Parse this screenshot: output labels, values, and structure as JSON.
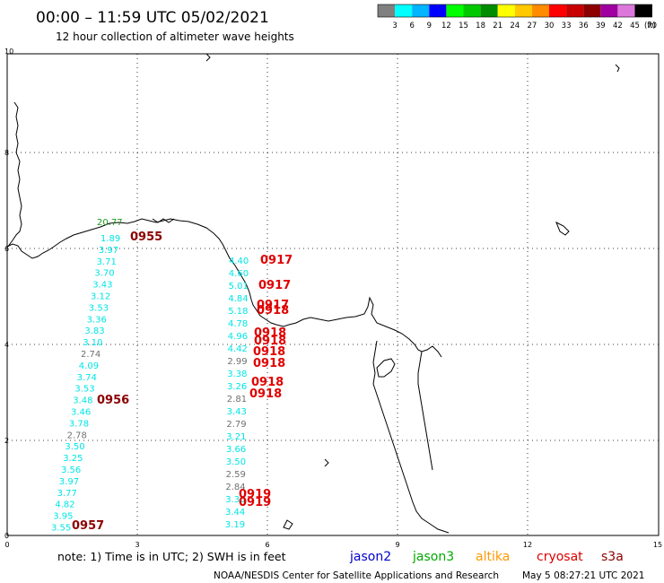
{
  "header": {
    "title": "00:00 – 11:59 UTC 05/02/2021",
    "subtitle": "12 hour collection of altimeter wave heights"
  },
  "legend": {
    "levels": [
      "3",
      "6",
      "9",
      "12",
      "15",
      "18",
      "21",
      "24",
      "27",
      "30",
      "33",
      "36",
      "39",
      "42",
      "45",
      "70"
    ],
    "unit": "(ft)",
    "colors": [
      "#808080",
      "#00ffff",
      "#00b4ff",
      "#0000ff",
      "#00ff00",
      "#00c800",
      "#008c00",
      "#ffff00",
      "#ffc800",
      "#ff8c00",
      "#ff0000",
      "#c80000",
      "#8c0000",
      "#a000a0",
      "#dc78dc",
      "#000000"
    ]
  },
  "axes": {
    "xticks": [
      "0",
      "3",
      "6",
      "9",
      "12",
      "15"
    ],
    "yticks": [
      "10",
      "8",
      "6",
      "4",
      "2",
      "0"
    ]
  },
  "colors": {
    "cyan": "#00e5e5",
    "gray": "#707070",
    "green": "#1a9a1a",
    "red": "#e00000",
    "darkred": "#8b0000"
  },
  "observations": {
    "track1": [
      {
        "v": "1.89",
        "c": "cyan"
      },
      {
        "v": "3.97",
        "c": "cyan"
      },
      {
        "v": "3.71",
        "c": "cyan"
      },
      {
        "v": "3.70",
        "c": "cyan"
      },
      {
        "v": "3.43",
        "c": "cyan"
      },
      {
        "v": "3.12",
        "c": "cyan"
      },
      {
        "v": "3.53",
        "c": "cyan"
      },
      {
        "v": "3.36",
        "c": "cyan"
      },
      {
        "v": "3.83",
        "c": "cyan"
      },
      {
        "v": "3.10",
        "c": "cyan"
      },
      {
        "v": "2.74",
        "c": "gray"
      },
      {
        "v": "4.09",
        "c": "cyan"
      },
      {
        "v": "3.74",
        "c": "cyan"
      },
      {
        "v": "3.53",
        "c": "cyan"
      },
      {
        "v": "3.48",
        "c": "cyan"
      },
      {
        "v": "3.46",
        "c": "cyan"
      },
      {
        "v": "3.78",
        "c": "cyan"
      },
      {
        "v": "2.78",
        "c": "gray"
      },
      {
        "v": "3.50",
        "c": "cyan"
      },
      {
        "v": "3.25",
        "c": "cyan"
      },
      {
        "v": "3.56",
        "c": "cyan"
      },
      {
        "v": "3.97",
        "c": "cyan"
      },
      {
        "v": "3.77",
        "c": "cyan"
      },
      {
        "v": "4.82",
        "c": "cyan"
      },
      {
        "v": "3.95",
        "c": "cyan"
      },
      {
        "v": "3.55",
        "c": "cyan"
      }
    ],
    "track2": [
      {
        "v": "4.40",
        "c": "cyan"
      },
      {
        "v": "4.60",
        "c": "cyan"
      },
      {
        "v": "5.01",
        "c": "cyan"
      },
      {
        "v": "4.84",
        "c": "cyan"
      },
      {
        "v": "5.18",
        "c": "cyan"
      },
      {
        "v": "4.78",
        "c": "cyan"
      },
      {
        "v": "4.96",
        "c": "cyan"
      },
      {
        "v": "4.42",
        "c": "cyan"
      },
      {
        "v": "2.99",
        "c": "gray"
      },
      {
        "v": "3.38",
        "c": "cyan"
      },
      {
        "v": "3.26",
        "c": "cyan"
      },
      {
        "v": "2.81",
        "c": "gray"
      },
      {
        "v": "3.43",
        "c": "cyan"
      },
      {
        "v": "2.79",
        "c": "gray"
      },
      {
        "v": "3.21",
        "c": "cyan"
      },
      {
        "v": "3.66",
        "c": "cyan"
      },
      {
        "v": "3.50",
        "c": "cyan"
      },
      {
        "v": "2.59",
        "c": "gray"
      },
      {
        "v": "2.84",
        "c": "gray"
      },
      {
        "v": "3.30",
        "c": "cyan"
      },
      {
        "v": "3.44",
        "c": "cyan"
      },
      {
        "v": "3.19",
        "c": "cyan"
      }
    ],
    "green": "20.77"
  },
  "passes": {
    "p0955": "0955",
    "p0956": "0956",
    "p0957": "0957",
    "p0917": "0917",
    "p0918": "0918",
    "p0919": "0919"
  },
  "footer": {
    "note": "note: 1) Time is in UTC; 2) SWH is in feet",
    "satellites": [
      {
        "name": "jason2",
        "color": "#0000cc"
      },
      {
        "name": "jason3",
        "color": "#00aa00"
      },
      {
        "name": "altika",
        "color": "#ff9900"
      },
      {
        "name": "cryosat",
        "color": "#dd0000"
      },
      {
        "name": "s3a",
        "color": "#8b0000"
      }
    ],
    "credit": "NOAA/NESDIS Center for Satellite Applications and Research",
    "timestamp": "May  5 08:27:21 UTC 2021"
  }
}
